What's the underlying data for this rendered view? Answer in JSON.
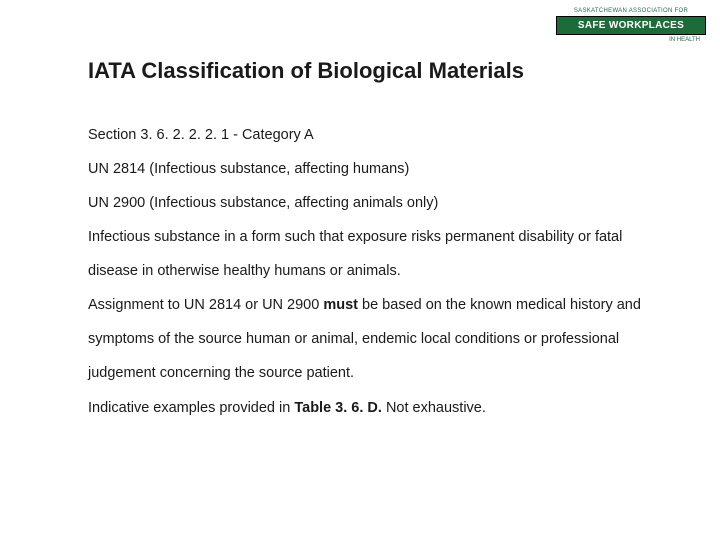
{
  "logo": {
    "top_text": "SASKATCHEWAN ASSOCIATION FOR",
    "main_text": "SAFE WORKPLACES",
    "bottom_text": "IN HEALTH"
  },
  "title": "IATA Classification of Biological Materials",
  "lines": {
    "l1": "Section 3. 6. 2. 2. 2. 1 - Category A",
    "l2": "UN 2814 (Infectious substance, affecting humans)",
    "l3": "UN 2900 (Infectious substance, affecting animals only)",
    "l4a": "Infectious substance in a form such that exposure risks permanent disability or fatal disease in otherwise healthy humans or animals.",
    "l5a": "Assignment to UN 2814 or UN 2900 ",
    "l5b": "must",
    "l5c": " be based on the known medical history and symptoms of the source human or animal, endemic local conditions or professional judgement concerning the source patient.",
    "l6a": "Indicative examples provided in ",
    "l6b": "Table 3. 6. D.",
    "l6c": " Not exhaustive."
  },
  "colors": {
    "text": "#1a1a1a",
    "logo_green": "#1e6b3a",
    "background": "#ffffff"
  },
  "typography": {
    "title_fontsize": 22,
    "body_fontsize": 14.5,
    "font_family": "Verdana"
  }
}
